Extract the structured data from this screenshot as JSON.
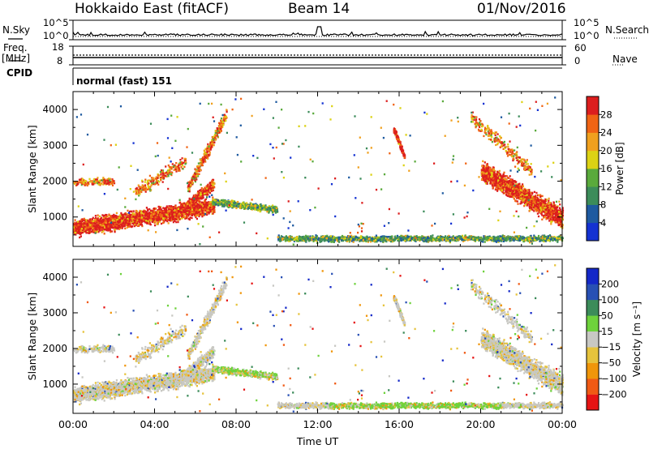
{
  "header": {
    "radar_title": "Hokkaido East (fitACF)",
    "beam": "Beam 14",
    "date": "01/Nov/2016"
  },
  "mini_panels": {
    "nsky_label": "N.Sky",
    "nsky_ticks": [
      "10^5",
      "10^0"
    ],
    "nsearch_label": "N.Search",
    "nsearch_ticks": [
      "10^5",
      "10^0"
    ],
    "freq_label_1": "Freq.",
    "freq_label_2": "[MHz]",
    "freq_ticks": [
      "18",
      "8"
    ],
    "nave_label": "Nave",
    "nave_ticks": [
      "60",
      "0"
    ],
    "cpid_label": "CPID",
    "cpid_value": "normal (fast) 151"
  },
  "chart_data": [
    {
      "type": "heatmap",
      "name": "power",
      "ylabel": "Slant Range [km]",
      "yticks": [
        "4000",
        "3000",
        "2000",
        "1000"
      ],
      "ylim": [
        180,
        4500
      ],
      "xlim": [
        "00:00",
        "24:00"
      ],
      "colorbar_label": "Power [dB]",
      "colorbar_ticks": [
        "28",
        "24",
        "20",
        "16",
        "12",
        "8",
        "4"
      ],
      "colors": [
        "#1432d2",
        "#1e5aa0",
        "#3c8c5a",
        "#5aaa3c",
        "#dcd214",
        "#f0a01e",
        "#f06414",
        "#dc1e1e"
      ],
      "regions": [
        {
          "t_start": 0.0,
          "t_end": 6.9,
          "range_low": 500,
          "range_high": 1500,
          "level": "28+"
        },
        {
          "t_start": 5.5,
          "t_end": 7.8,
          "range_low": 1200,
          "range_high": 3800,
          "level": "16-28"
        },
        {
          "t_start": 6.8,
          "t_end": 10.0,
          "range_low": 1000,
          "range_high": 1500,
          "level": "8-20"
        },
        {
          "t_start": 10.0,
          "t_end": 24.0,
          "range_low": 250,
          "range_high": 550,
          "level": "4-16"
        },
        {
          "t_start": 15.7,
          "t_end": 16.3,
          "range_low": 2600,
          "range_high": 3500,
          "level": "16-28"
        },
        {
          "t_start": 20.0,
          "t_end": 24.0,
          "range_low": 800,
          "range_high": 2400,
          "level": "28+"
        }
      ]
    },
    {
      "type": "heatmap",
      "name": "velocity",
      "ylabel": "Slant Range [km]",
      "xlabel": "Time UT",
      "yticks": [
        "4000",
        "3000",
        "2000",
        "1000"
      ],
      "xticks": [
        "00:00",
        "04:00",
        "08:00",
        "12:00",
        "16:00",
        "20:00",
        "00:00"
      ],
      "ylim": [
        180,
        4500
      ],
      "xlim": [
        "00:00",
        "24:00"
      ],
      "colorbar_label": "Velocity [m s⁻¹]",
      "colorbar_ticks": [
        "200",
        "100",
        "50",
        "15",
        "−15",
        "−50",
        "−100",
        "−200"
      ],
      "colors": [
        "#e61414",
        "#f05a14",
        "#f0960a",
        "#e6c33c",
        "#c8c8c3",
        "#6ed23c",
        "#3c8c5a",
        "#2850b4",
        "#1428c8"
      ],
      "regions": [
        {
          "t_start": 0.0,
          "t_end": 7.8,
          "range_low": 400,
          "range_high": 1500,
          "level": "-15 to 15"
        },
        {
          "t_start": 7.8,
          "t_end": 10.0,
          "range_low": 1000,
          "range_high": 1400,
          "level": "15 to 50"
        },
        {
          "t_start": 12.5,
          "t_end": 21.0,
          "range_low": 350,
          "range_high": 600,
          "level": "15 to 50"
        },
        {
          "t_start": 20.0,
          "t_end": 24.0,
          "range_low": 700,
          "range_high": 2400,
          "level": "-15 to 15"
        }
      ]
    }
  ]
}
